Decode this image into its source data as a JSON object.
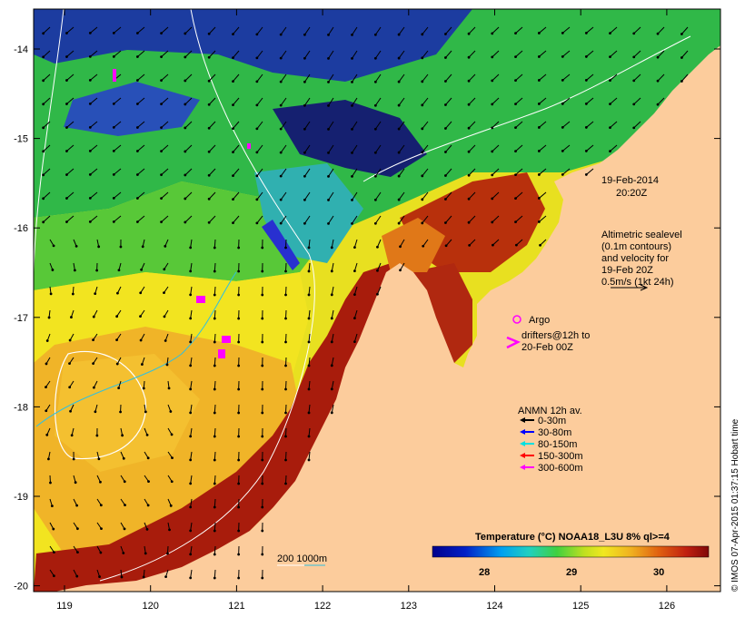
{
  "map": {
    "date_label": "19-Feb-2014",
    "time_label": "20:20Z",
    "altimetry_note": [
      "Altimetric sealevel",
      "(0.1m contours)",
      "and velocity for",
      "19-Feb 20Z",
      "0.5m/s (1kt 24h)"
    ],
    "argo_label": "Argo",
    "drifters_label": [
      "drifters@12h to",
      "20-Feb 00Z"
    ],
    "anmn": {
      "title": "ANMN 12h av.",
      "items": [
        {
          "label": "0-30m",
          "color": "#000000"
        },
        {
          "label": "30-80m",
          "color": "#0000ff"
        },
        {
          "label": "80-150m",
          "color": "#00e0e0"
        },
        {
          "label": "150-300m",
          "color": "#ff0000"
        },
        {
          "label": "300-600m",
          "color": "#ff00ff"
        }
      ]
    },
    "bathy_label": "200  1000m",
    "colorbar": {
      "title": "Temperature (°C) NOAA18_L3U 8% ql>=4",
      "ticks": [
        "28",
        "29",
        "30"
      ]
    },
    "credit": "© IMOS 07-Apr-2015 01:37:15 Hobart time",
    "x_ticks": [
      "119",
      "120",
      "121",
      "122",
      "123",
      "124",
      "125",
      "126"
    ],
    "y_ticks": [
      "-14",
      "-15",
      "-16",
      "-17",
      "-18",
      "-19",
      "-20"
    ],
    "colors": {
      "land": "#fccc9c",
      "warm": "#a01c0c",
      "orange": "#f0a020",
      "yellow": "#f0e020",
      "green": "#40c040",
      "cyan": "#20c0c0",
      "blue": "#1830a0",
      "navy": "#101860"
    }
  }
}
